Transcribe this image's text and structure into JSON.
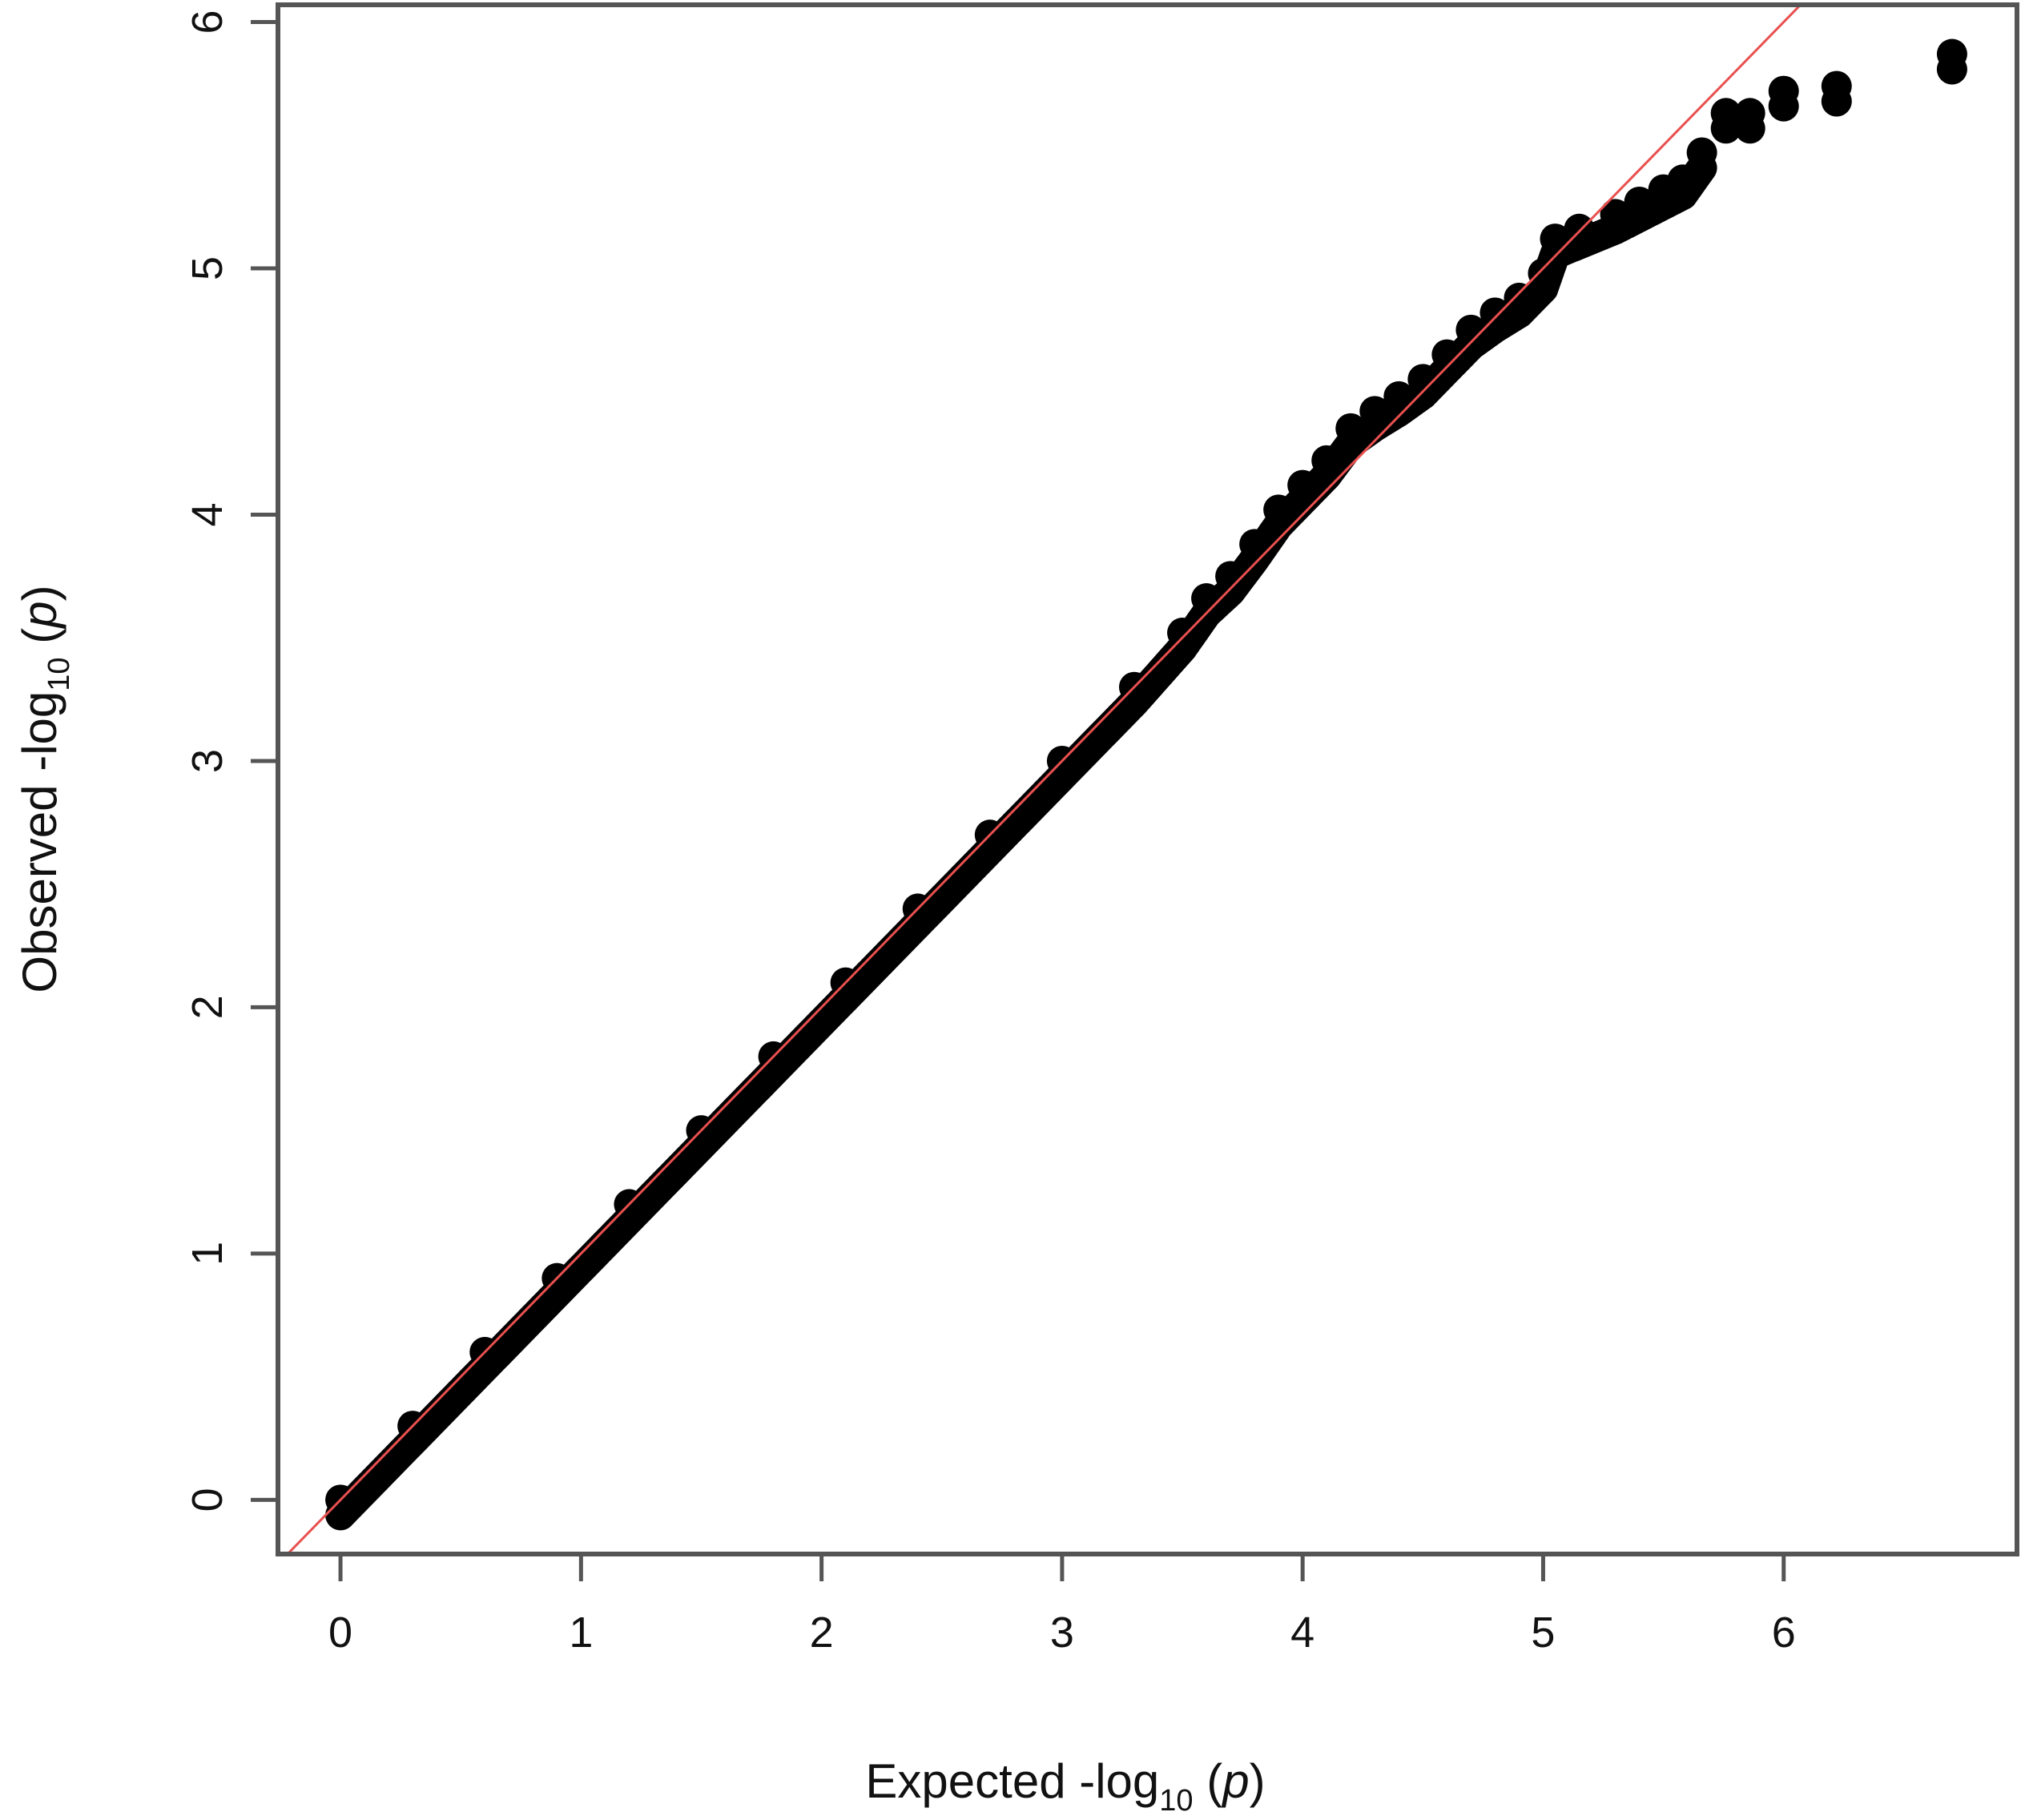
{
  "chart_data": {
    "type": "scatter",
    "title": "",
    "xlabel": {
      "prefix": "Expected -log",
      "subscript": "10",
      "suffix": " (",
      "italic": "p",
      "close": ")"
    },
    "ylabel": {
      "prefix": "Observed -log",
      "subscript": "10",
      "suffix": " (",
      "italic": "p",
      "close": ")"
    },
    "xlim": [
      -0.26,
      6.97
    ],
    "ylim": [
      -0.22,
      6.07
    ],
    "x_ticks": [
      0,
      1,
      2,
      3,
      4,
      5,
      6
    ],
    "y_ticks": [
      0,
      1,
      2,
      3,
      4,
      5,
      6
    ],
    "x_tick_labels": [
      "0",
      "1",
      "2",
      "3",
      "4",
      "5",
      "6"
    ],
    "y_tick_labels": [
      "0",
      "1",
      "2",
      "3",
      "4",
      "5",
      "6"
    ],
    "grid": false,
    "legend": "none",
    "point_color": "#000000",
    "reference_line": {
      "type": "identity",
      "slope": 1,
      "intercept": 0,
      "color": "#e8504f"
    },
    "series": [
      {
        "points": [
          [
            0.0,
            0.0
          ],
          [
            0.3,
            0.3
          ],
          [
            0.6,
            0.6
          ],
          [
            0.9,
            0.9
          ],
          [
            1.2,
            1.2
          ],
          [
            1.5,
            1.5
          ],
          [
            1.8,
            1.8
          ],
          [
            2.1,
            2.1
          ],
          [
            2.4,
            2.4
          ],
          [
            2.7,
            2.7
          ],
          [
            3.0,
            3.0
          ],
          [
            3.3,
            3.3
          ],
          [
            3.5,
            3.52
          ],
          [
            3.6,
            3.66
          ],
          [
            3.7,
            3.75
          ],
          [
            3.8,
            3.88
          ],
          [
            3.9,
            4.02
          ],
          [
            4.0,
            4.12
          ],
          [
            4.1,
            4.22
          ],
          [
            4.2,
            4.35
          ],
          [
            4.3,
            4.42
          ],
          [
            4.4,
            4.48
          ],
          [
            4.5,
            4.55
          ],
          [
            4.6,
            4.65
          ],
          [
            4.7,
            4.75
          ],
          [
            4.8,
            4.82
          ],
          [
            4.9,
            4.88
          ],
          [
            5.0,
            4.98
          ],
          [
            5.05,
            5.12
          ],
          [
            5.15,
            5.16
          ],
          [
            5.3,
            5.22
          ],
          [
            5.4,
            5.27
          ],
          [
            5.5,
            5.32
          ],
          [
            5.58,
            5.36
          ],
          [
            5.66,
            5.47
          ],
          [
            5.76,
            5.63
          ],
          [
            5.86,
            5.63
          ],
          [
            6.0,
            5.72
          ],
          [
            6.22,
            5.74
          ],
          [
            6.7,
            5.87
          ]
        ]
      }
    ]
  }
}
